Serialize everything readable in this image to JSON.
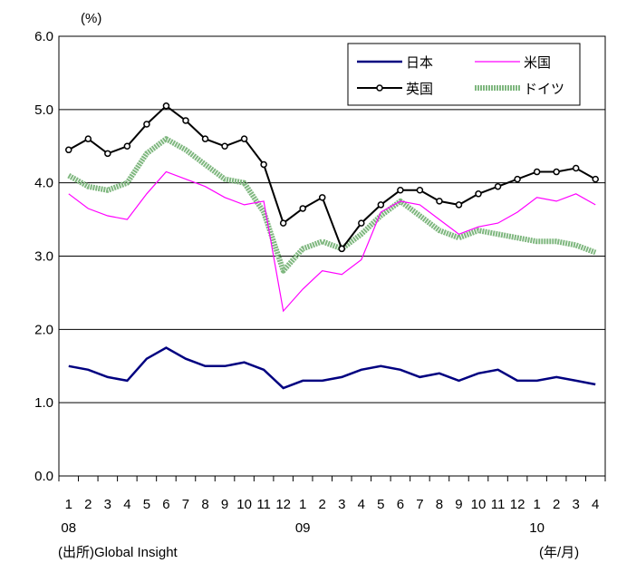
{
  "chart_data": {
    "type": "line",
    "y_unit": "(%)",
    "ylim": [
      0,
      6
    ],
    "yticks": [
      "0.0",
      "1.0",
      "2.0",
      "3.0",
      "4.0",
      "5.0",
      "6.0"
    ],
    "month_labels": [
      "1",
      "2",
      "3",
      "4",
      "5",
      "6",
      "7",
      "8",
      "9",
      "10",
      "11",
      "12",
      "1",
      "2",
      "3",
      "4",
      "5",
      "6",
      "7",
      "8",
      "9",
      "10",
      "11",
      "12",
      "1",
      "2",
      "3",
      "4"
    ],
    "year_labels": [
      {
        "label": "08",
        "month_index": 0
      },
      {
        "label": "09",
        "month_index": 12
      },
      {
        "label": "10",
        "month_index": 24
      }
    ],
    "x_axis_note": "(年/月)",
    "source": "(出所)Global Insight",
    "grid": "horizontal",
    "legend_position": "top-right",
    "series": [
      {
        "name": "日本",
        "color": "#000080",
        "style": "line",
        "values": [
          1.5,
          1.45,
          1.35,
          1.3,
          1.6,
          1.75,
          1.6,
          1.5,
          1.5,
          1.55,
          1.45,
          1.2,
          1.3,
          1.3,
          1.35,
          1.45,
          1.5,
          1.45,
          1.35,
          1.4,
          1.3,
          1.4,
          1.45,
          1.3,
          1.3,
          1.35,
          1.3,
          1.25
        ]
      },
      {
        "name": "米国",
        "color": "#ff00ff",
        "style": "line",
        "values": [
          3.85,
          3.65,
          3.55,
          3.5,
          3.85,
          4.15,
          4.05,
          3.95,
          3.8,
          3.7,
          3.75,
          2.25,
          2.55,
          2.8,
          2.75,
          2.95,
          3.6,
          3.75,
          3.7,
          3.5,
          3.3,
          3.4,
          3.45,
          3.6,
          3.8,
          3.75,
          3.85,
          3.7
        ]
      },
      {
        "name": "英国",
        "color": "#000000",
        "style": "marker",
        "values": [
          4.45,
          4.6,
          4.4,
          4.5,
          4.8,
          5.05,
          4.85,
          4.6,
          4.5,
          4.6,
          4.25,
          3.45,
          3.65,
          3.8,
          3.1,
          3.45,
          3.7,
          3.9,
          3.9,
          3.75,
          3.7,
          3.85,
          3.95,
          4.05,
          4.15,
          4.15,
          4.2,
          4.05
        ]
      },
      {
        "name": "ドイツ",
        "color": "#7fb77f",
        "style": "dotted-band",
        "values": [
          4.1,
          3.95,
          3.9,
          4.0,
          4.4,
          4.6,
          4.45,
          4.25,
          4.05,
          4.0,
          3.6,
          2.8,
          3.1,
          3.2,
          3.1,
          3.3,
          3.55,
          3.75,
          3.55,
          3.35,
          3.25,
          3.35,
          3.3,
          3.25,
          3.2,
          3.2,
          3.15,
          3.05
        ]
      }
    ]
  }
}
